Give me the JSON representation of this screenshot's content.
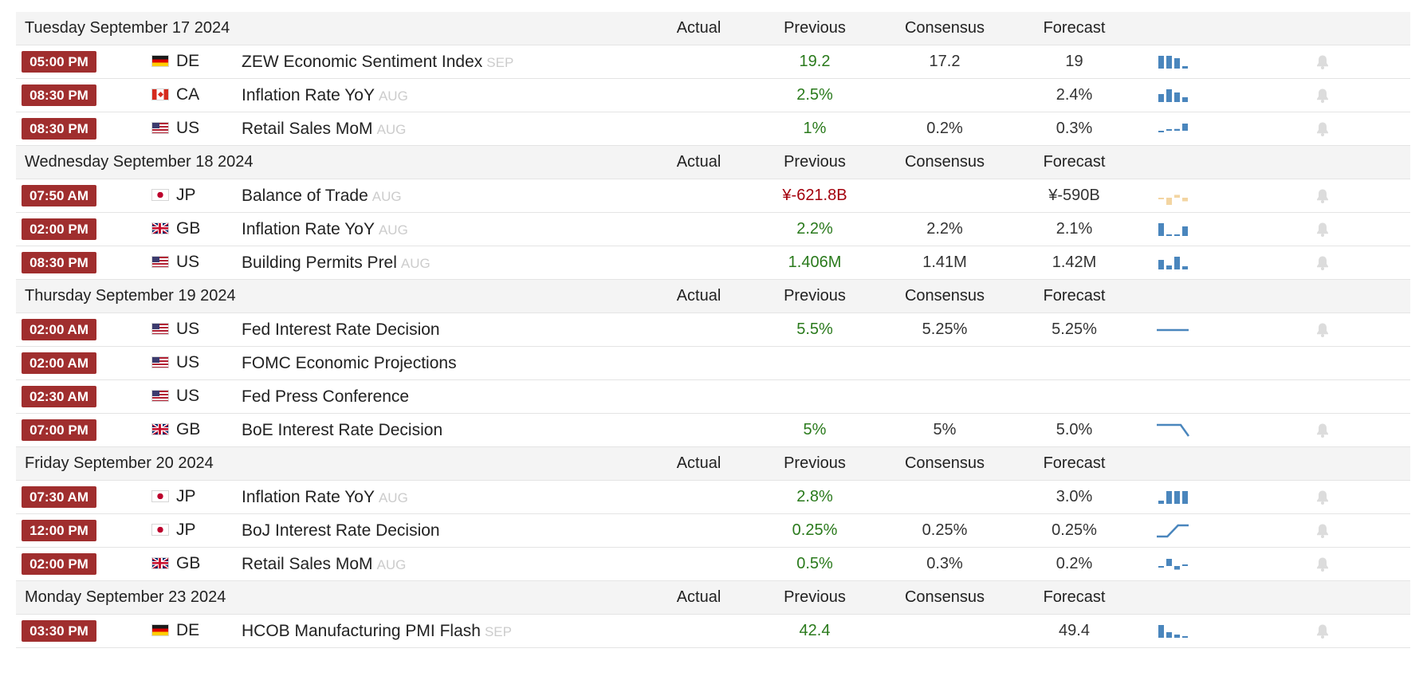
{
  "columns": {
    "actual": "Actual",
    "previous": "Previous",
    "consensus": "Consensus",
    "forecast": "Forecast"
  },
  "colors": {
    "time_badge_bg": "#a02e2e",
    "positive_value": "#2a7a1c",
    "negative_value": "#a3000c",
    "reference_text": "#cccccc",
    "sparkline_blue": "#4a86bd",
    "sparkline_orange": "#f3d5a2"
  },
  "days": [
    {
      "date": "Tuesday September 17 2024",
      "events": [
        {
          "time": "05:00 PM",
          "country": "DE",
          "flag": "flag-DE",
          "event": "ZEW Economic Sentiment Index",
          "reference": "SEP",
          "actual": "",
          "previous": "19.2",
          "previous_class": "pos",
          "consensus": "17.2",
          "forecast": "19",
          "spark": {
            "type": "bars",
            "values": [
              16,
              16,
              13,
              3
            ],
            "color": "#4a86bd"
          },
          "alert_icon": "bell-icon"
        },
        {
          "time": "08:30 PM",
          "country": "CA",
          "flag": "flag-CA",
          "event": "Inflation Rate YoY",
          "reference": "AUG",
          "actual": "",
          "previous": "2.5%",
          "previous_class": "pos",
          "consensus": "",
          "forecast": "2.4%",
          "spark": {
            "type": "bars",
            "values": [
              10,
              16,
              12,
              6
            ],
            "color": "#4a86bd"
          },
          "alert_icon": "bell-icon"
        },
        {
          "time": "08:30 PM",
          "country": "US",
          "flag": "flag-US",
          "event": "Retail Sales MoM",
          "reference": "AUG",
          "actual": "",
          "previous": "1%",
          "previous_class": "pos",
          "consensus": "0.2%",
          "forecast": "0.3%",
          "spark": {
            "type": "bars_mixed",
            "values": [
              -1,
              1,
              3,
              12
            ],
            "color": "#4a86bd"
          },
          "alert_icon": "bell-icon"
        }
      ]
    },
    {
      "date": "Wednesday September 18 2024",
      "events": [
        {
          "time": "07:50 AM",
          "country": "JP",
          "flag": "flag-JP",
          "event": "Balance of Trade",
          "reference": "AUG",
          "actual": "",
          "previous": "¥-621.8B",
          "previous_class": "neg",
          "consensus": "",
          "forecast": "¥-590B",
          "spark": {
            "type": "bars_mixed",
            "values": [
              -2,
              -10,
              4,
              -5
            ],
            "color": "#f3d5a2"
          },
          "alert_icon": "bell-icon"
        },
        {
          "time": "02:00 PM",
          "country": "GB",
          "flag": "flag-GB",
          "event": "Inflation Rate YoY",
          "reference": "AUG",
          "actual": "",
          "previous": "2.2%",
          "previous_class": "pos",
          "consensus": "2.2%",
          "forecast": "2.1%",
          "spark": {
            "type": "bars",
            "values": [
              16,
              2,
              2,
              12
            ],
            "color": "#4a86bd"
          },
          "alert_icon": "bell-icon"
        },
        {
          "time": "08:30 PM",
          "country": "US",
          "flag": "flag-US",
          "event": "Building Permits Prel",
          "reference": "AUG",
          "actual": "",
          "previous": "1.406M",
          "previous_class": "pos",
          "consensus": "1.41M",
          "forecast": "1.42M",
          "spark": {
            "type": "bars",
            "values": [
              12,
              5,
              16,
              4
            ],
            "color": "#4a86bd"
          },
          "alert_icon": "bell-icon"
        }
      ]
    },
    {
      "date": "Thursday September 19 2024",
      "events": [
        {
          "time": "02:00 AM",
          "country": "US",
          "flag": "flag-US",
          "event": "Fed Interest Rate Decision",
          "reference": "",
          "actual": "",
          "previous": "5.5%",
          "previous_class": "pos",
          "consensus": "5.25%",
          "forecast": "5.25%",
          "spark": {
            "type": "line",
            "values": [
              1,
              1,
              1,
              1
            ],
            "color": "#4a86bd"
          },
          "alert_icon": "bell-icon"
        },
        {
          "time": "02:00 AM",
          "country": "US",
          "flag": "flag-US",
          "event": "FOMC Economic Projections",
          "reference": "",
          "actual": "",
          "previous": "",
          "previous_class": "neutral",
          "consensus": "",
          "forecast": "",
          "spark": null,
          "alert_icon": ""
        },
        {
          "time": "02:30 AM",
          "country": "US",
          "flag": "flag-US",
          "event": "Fed Press Conference",
          "reference": "",
          "actual": "",
          "previous": "",
          "previous_class": "neutral",
          "consensus": "",
          "forecast": "",
          "spark": null,
          "alert_icon": ""
        },
        {
          "time": "07:00 PM",
          "country": "GB",
          "flag": "flag-GB",
          "event": "BoE Interest Rate Decision",
          "reference": "",
          "actual": "",
          "previous": "5%",
          "previous_class": "pos",
          "consensus": "5%",
          "forecast": "5.0%",
          "spark": {
            "type": "line",
            "values": [
              5,
              5,
              5,
              5,
              1
            ],
            "color": "#4a86bd"
          },
          "alert_icon": "bell-icon"
        }
      ]
    },
    {
      "date": "Friday September 20 2024",
      "events": [
        {
          "time": "07:30 AM",
          "country": "JP",
          "flag": "flag-JP",
          "event": "Inflation Rate YoY",
          "reference": "AUG",
          "actual": "",
          "previous": "2.8%",
          "previous_class": "pos",
          "consensus": "",
          "forecast": "3.0%",
          "spark": {
            "type": "bars",
            "values": [
              4,
              16,
              16,
              16
            ],
            "color": "#4a86bd"
          },
          "alert_icon": "bell-icon"
        },
        {
          "time": "12:00 PM",
          "country": "JP",
          "flag": "flag-JP",
          "event": "BoJ Interest Rate Decision",
          "reference": "",
          "actual": "",
          "previous": "0.25%",
          "previous_class": "pos",
          "consensus": "0.25%",
          "forecast": "0.25%",
          "spark": {
            "type": "line",
            "values": [
              1,
              1,
              5,
              5
            ],
            "color": "#4a86bd"
          },
          "alert_icon": "bell-icon"
        },
        {
          "time": "02:00 PM",
          "country": "GB",
          "flag": "flag-GB",
          "event": "Retail Sales MoM",
          "reference": "AUG",
          "actual": "",
          "previous": "0.5%",
          "previous_class": "pos",
          "consensus": "0.3%",
          "forecast": "0.2%",
          "spark": {
            "type": "bars_mixed",
            "values": [
              -1,
              8,
              -4,
              1
            ],
            "color": "#4a86bd"
          },
          "alert_icon": "bell-icon"
        }
      ]
    },
    {
      "date": "Monday September 23 2024",
      "events": [
        {
          "time": "03:30 PM",
          "country": "DE",
          "flag": "flag-DE",
          "event": "HCOB Manufacturing PMI Flash",
          "reference": "SEP",
          "actual": "",
          "previous": "42.4",
          "previous_class": "pos",
          "consensus": "",
          "forecast": "49.4",
          "spark": {
            "type": "bars",
            "values": [
              16,
              7,
              4,
              2
            ],
            "color": "#4a86bd"
          },
          "alert_icon": "bell-icon"
        }
      ]
    }
  ]
}
